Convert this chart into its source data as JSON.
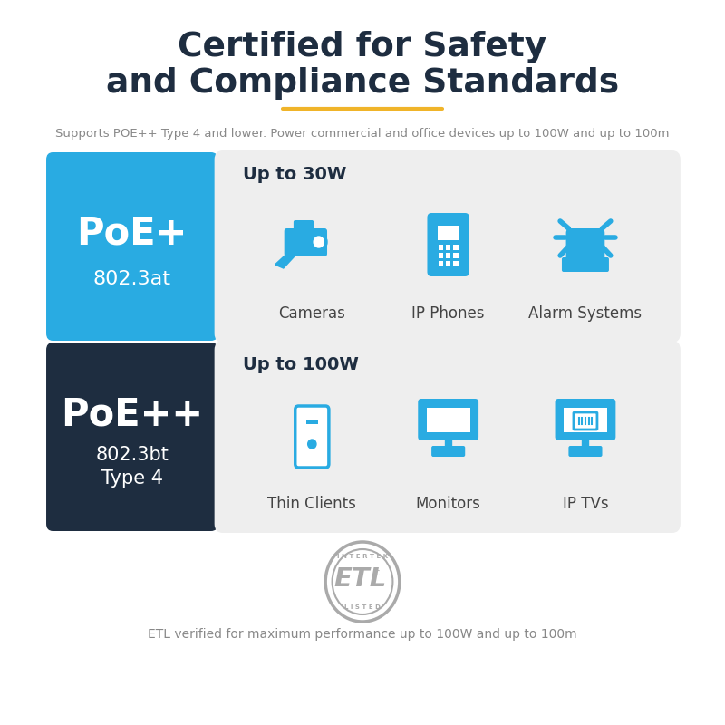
{
  "title_line1": "Certified for Safety",
  "title_line2": "and Compliance Standards",
  "title_color": "#1e2d40",
  "subtitle": "Supports POE++ Type 4 and lower. Power commercial and office devices up to 100W and up to 100m",
  "subtitle_color": "#888888",
  "divider_color": "#f0b429",
  "bg_color": "#ffffff",
  "poe_plus_bg": "#29abe2",
  "poe_plus_text": "PoE+",
  "poe_plus_sub": "802.3at",
  "poe_plus_text_color": "#ffffff",
  "poe_pp_bg": "#1e2d40",
  "poe_pp_text": "PoE++",
  "poe_pp_sub1": "802.3bt",
  "poe_pp_sub2": "Type 4",
  "poe_pp_text_color": "#ffffff",
  "row1_power": "Up to 30W",
  "row1_devices": [
    "Cameras",
    "IP Phones",
    "Alarm Systems"
  ],
  "row2_power": "Up to 100W",
  "row2_devices": [
    "Thin Clients",
    "Monitors",
    "IP TVs"
  ],
  "row_bg": "#eeeeee",
  "icon_color": "#29abe2",
  "device_label_color": "#444444",
  "power_label_color": "#1e2d40",
  "etl_text": "ETL verified for maximum performance up to 100W and up to 100m",
  "etl_color": "#888888",
  "etl_logo_color": "#aaaaaa"
}
